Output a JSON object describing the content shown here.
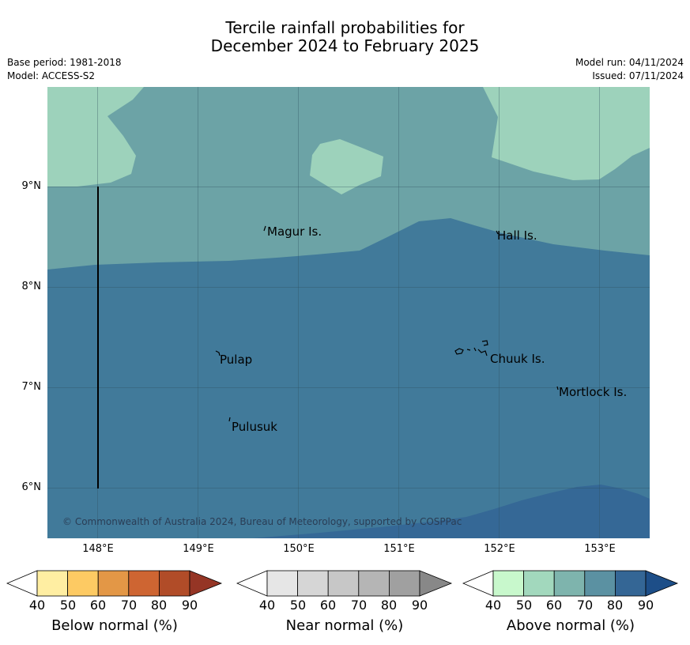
{
  "title": {
    "line1": "Tercile rainfall probabilities for",
    "line2": "December 2024 to February 2025"
  },
  "meta": {
    "base_period": "Base period: 1981-2018",
    "model": "Model: ACCESS-S2",
    "model_run": "Model run: 04/11/2024",
    "issued": "Issued: 07/11/2024"
  },
  "map": {
    "lat_labels": [
      "9°N",
      "8°N",
      "7°N",
      "6°N"
    ],
    "lon_labels": [
      "148°E",
      "149°E",
      "150°E",
      "151°E",
      "152°E",
      "153°E"
    ],
    "places": [
      "Magur Is.",
      "Hall Is.",
      "Pulap",
      "Chuuk Is.",
      "Mortlock Is.",
      "Pulusuk"
    ],
    "copyright": "© Commonwealth of Australia 2024, Bureau of Meteorology, supported by COSPPac",
    "fill_colors": {
      "above_50": "#9dd2bb",
      "above_60_70": "#6ca3a6",
      "above_70_80": "#417a9a",
      "above_80_90": "#356896"
    }
  },
  "legend": {
    "ticks": [
      "40",
      "50",
      "60",
      "70",
      "80",
      "90"
    ],
    "below": {
      "label": "Below normal (%)",
      "colors": [
        "#ffffff",
        "#ffeea2",
        "#fdca63",
        "#e39746",
        "#ce6532",
        "#b14c28",
        "#953525"
      ]
    },
    "near": {
      "label": "Near normal (%)",
      "colors": [
        "#ffffff",
        "#e6e6e6",
        "#d6d6d6",
        "#c7c7c7",
        "#b5b5b5",
        "#a0a0a0",
        "#888888"
      ]
    },
    "above": {
      "label": "Above normal (%)",
      "colors": [
        "#ffffff",
        "#c8f8cc",
        "#a2d8bd",
        "#7eb4ad",
        "#5b91a2",
        "#346695",
        "#1d4e88"
      ]
    }
  }
}
